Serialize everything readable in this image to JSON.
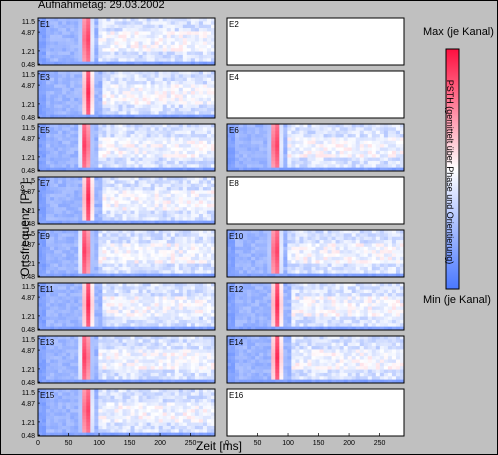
{
  "title": "Aufnahmetag: 29.03.2002",
  "ylabel": "Ortsfrequenz [P/°]",
  "xlabel": "Zeit [ms]",
  "colorbar": {
    "max_label": "Max (je Kanal)",
    "min_label": "Min (je Kanal)",
    "title": "PSTH (gemittelt über Phase und Orientierung)",
    "colors": [
      "#4a78ff",
      "#ffffff",
      "#ff1040"
    ]
  },
  "chart_data": {
    "type": "heatmap",
    "x_ticks": [
      "0",
      "50",
      "100",
      "150",
      "200",
      "250"
    ],
    "y_ticks": [
      "11.5",
      "4.87",
      "1.21",
      "0.48"
    ],
    "xlim": [
      0,
      290
    ],
    "panels": [
      {
        "label": "E1",
        "data": true,
        "peak_ms": 80
      },
      {
        "label": "E2",
        "data": false
      },
      {
        "label": "E3",
        "data": true,
        "peak_ms": 82
      },
      {
        "label": "E4",
        "data": false
      },
      {
        "label": "E5",
        "data": true,
        "peak_ms": 78
      },
      {
        "label": "E6",
        "data": true,
        "peak_ms": 80
      },
      {
        "label": "E7",
        "data": true,
        "peak_ms": 82
      },
      {
        "label": "E8",
        "data": false
      },
      {
        "label": "E9",
        "data": true,
        "peak_ms": 78
      },
      {
        "label": "E10",
        "data": true,
        "peak_ms": 80
      },
      {
        "label": "E11",
        "data": true,
        "peak_ms": 82
      },
      {
        "label": "E12",
        "data": true,
        "peak_ms": 82
      },
      {
        "label": "E13",
        "data": true,
        "peak_ms": 78
      },
      {
        "label": "E14",
        "data": true,
        "peak_ms": 82
      },
      {
        "label": "E15",
        "data": true,
        "peak_ms": 80
      },
      {
        "label": "E16",
        "data": false
      }
    ]
  }
}
